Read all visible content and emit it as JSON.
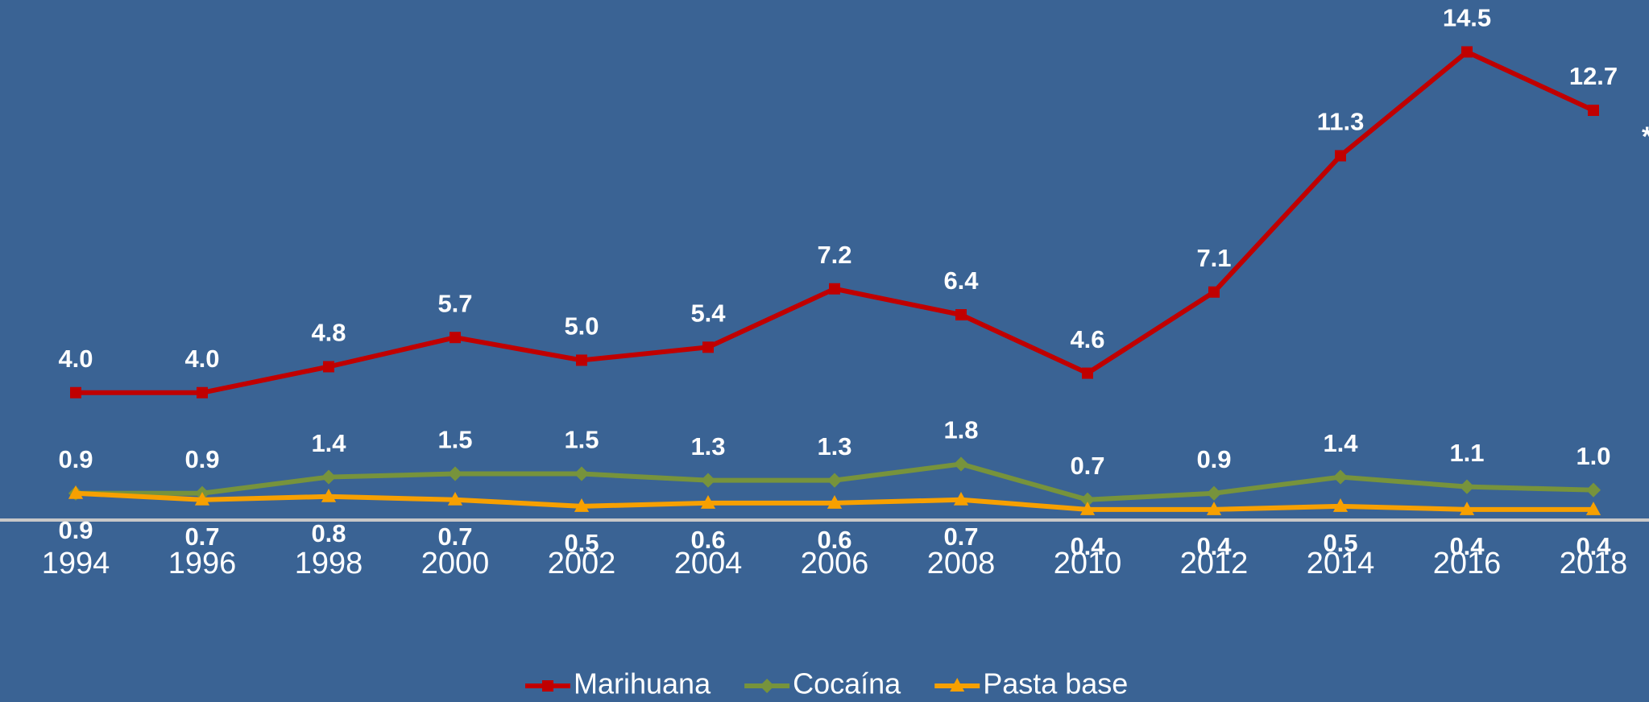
{
  "chart_data": {
    "type": "line",
    "categories": [
      "1994",
      "1996",
      "1998",
      "2000",
      "2002",
      "2004",
      "2006",
      "2008",
      "2010",
      "2012",
      "2014",
      "2016",
      "2018"
    ],
    "ylim": [
      0,
      16
    ],
    "annotations": [
      "*"
    ],
    "series": [
      {
        "name": "Marihuana",
        "color": "#c00000",
        "marker": "square",
        "values": [
          4.0,
          4.0,
          4.8,
          5.7,
          5.0,
          5.4,
          7.2,
          6.4,
          4.6,
          7.1,
          11.3,
          14.5,
          12.7
        ],
        "value_labels": [
          "4.0",
          "4.0",
          "4.8",
          "5.7",
          "5.0",
          "5.4",
          "7.2",
          "6.4",
          "4.6",
          "7.1",
          "11.3",
          "14.5",
          "12.7"
        ]
      },
      {
        "name": "Cocaína",
        "color": "#77933c",
        "marker": "diamond",
        "values": [
          0.9,
          0.9,
          1.4,
          1.5,
          1.5,
          1.3,
          1.3,
          1.8,
          0.7,
          0.9,
          1.4,
          1.1,
          1.0
        ],
        "value_labels": [
          "0.9",
          "0.9",
          "1.4",
          "1.5",
          "1.5",
          "1.3",
          "1.3",
          "1.8",
          "0.7",
          "0.9",
          "1.4",
          "1.1",
          "1.0"
        ]
      },
      {
        "name": "Pasta base",
        "color": "#f7a000",
        "marker": "triangle",
        "values": [
          0.9,
          0.7,
          0.8,
          0.7,
          0.5,
          0.6,
          0.6,
          0.7,
          0.4,
          0.4,
          0.5,
          0.4,
          0.4
        ],
        "value_labels": [
          "0.9",
          "0.7",
          "0.8",
          "0.7",
          "0.5",
          "0.6",
          "0.6",
          "0.7",
          "0.4",
          "0.4",
          "0.5",
          "0.4",
          "0.4"
        ]
      }
    ]
  }
}
